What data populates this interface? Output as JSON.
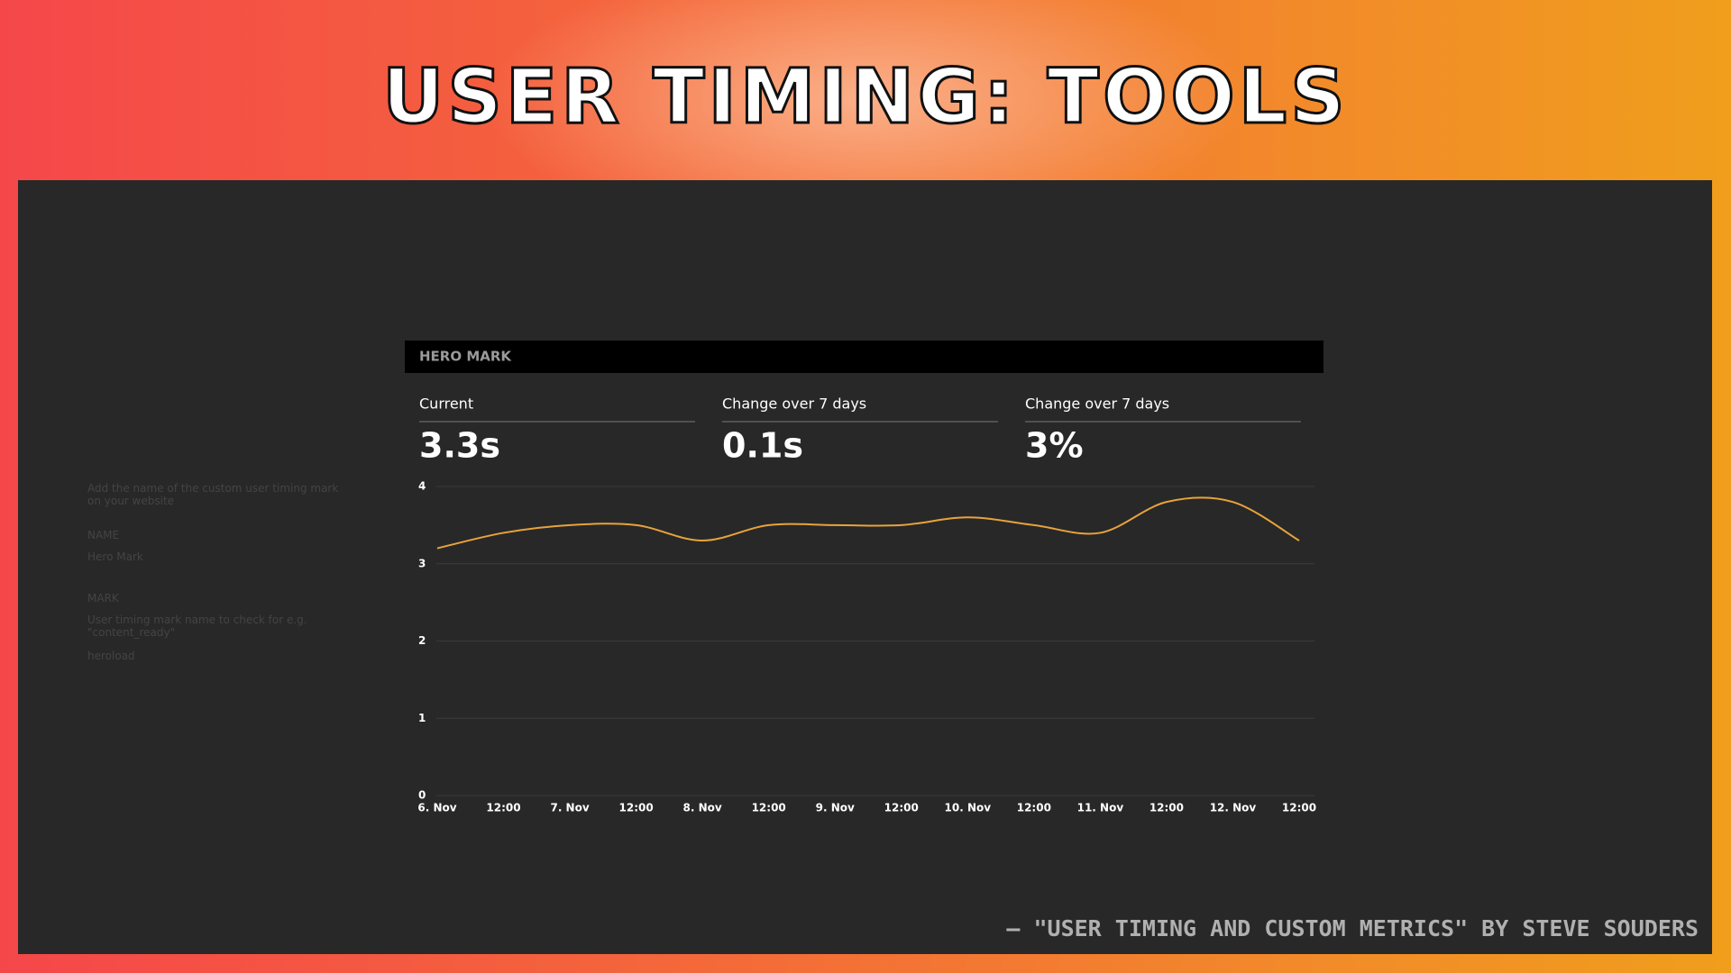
{
  "slide": {
    "title": "USER TIMING: TOOLS",
    "credit": "– \"USER TIMING AND CUSTOM METRICS\" BY STEVE SOUDERS"
  },
  "sidebar": {
    "hint": "Add the name of the custom user timing mark on your website",
    "name_label": "NAME",
    "name_input": "Hero Mark",
    "mark_label": "MARK",
    "mark_hint": "User timing mark name to check for e.g. \"content_ready\"",
    "mark_input": "heroload"
  },
  "panel": {
    "header": "HERO MARK",
    "stats": [
      {
        "label": "Current",
        "value": "3.3s"
      },
      {
        "label": "Change over 7 days",
        "value": "0.1s"
      },
      {
        "label": "Change over 7 days",
        "value": "3%"
      }
    ]
  },
  "chart_data": {
    "type": "line",
    "categories": [
      "6. Nov",
      "12:00",
      "7. Nov",
      "12:00",
      "8. Nov",
      "12:00",
      "9. Nov",
      "12:00",
      "10. Nov",
      "12:00",
      "11. Nov",
      "12:00",
      "12. Nov",
      "12:00"
    ],
    "values": [
      3.2,
      3.4,
      3.5,
      3.5,
      3.3,
      3.5,
      3.5,
      3.5,
      3.6,
      3.5,
      3.4,
      3.8,
      3.8,
      3.3
    ],
    "color": "#e8a33a",
    "ylim": [
      0,
      4
    ],
    "yticks": [
      0,
      1,
      2,
      3,
      4
    ],
    "grid": true
  }
}
